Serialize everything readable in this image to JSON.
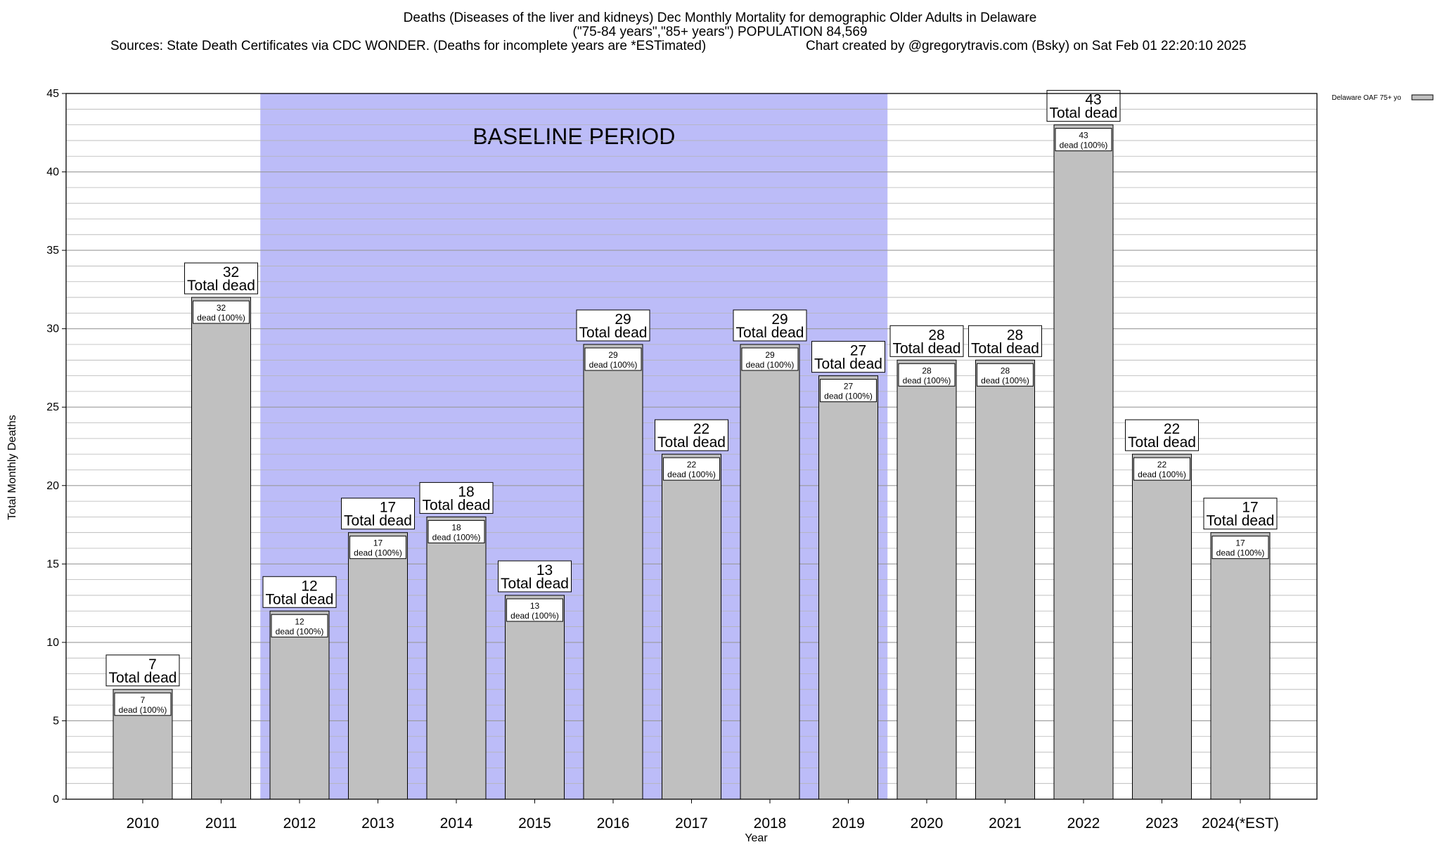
{
  "header": {
    "title_line1": "Deaths (Diseases of the liver and kidneys) Dec Monthly Mortality for demographic Older Adults in Delaware",
    "title_line2": "(\"75-84 years\",\"85+ years\") POPULATION 84,569",
    "sources": "Sources: State Death Certificates via CDC WONDER. (Deaths for incomplete years are *ESTimated)",
    "credit": "Chart created by @gregorytravis.com (Bsky) on Sat Feb 01 22:20:10 2025"
  },
  "chart_data": {
    "type": "bar",
    "categories": [
      "2010",
      "2011",
      "2012",
      "2013",
      "2014",
      "2015",
      "2016",
      "2017",
      "2018",
      "2019",
      "2020",
      "2021",
      "2022",
      "2023",
      "2024(*EST)"
    ],
    "series": [
      {
        "name": "Delaware OAF 75+ yo",
        "values": [
          7,
          32,
          12,
          17,
          18,
          13,
          29,
          22,
          29,
          27,
          28,
          28,
          43,
          22,
          17
        ],
        "color": "#c0c0c0"
      }
    ],
    "data_labels": {
      "top_suffix": "Total dead",
      "inner_suffix": "dead (100%)"
    },
    "xlabel": "Year",
    "ylabel": "Total Monthly Deaths",
    "ylim": [
      0,
      45
    ],
    "yticks": [
      0,
      5,
      10,
      15,
      20,
      25,
      30,
      35,
      40,
      45
    ],
    "minor_gridline_step": 1,
    "grid": true,
    "legend_position": "top-right, outside plot",
    "annotation": {
      "text": "BASELINE PERIOD",
      "span_categories": [
        "2012",
        "2019"
      ],
      "color": "#bcbcf8"
    }
  }
}
